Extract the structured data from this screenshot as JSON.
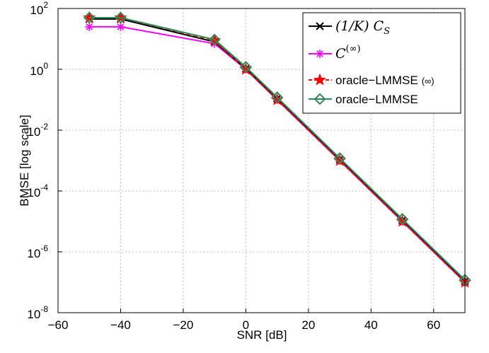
{
  "chart_data": {
    "type": "line",
    "xlabel": "SNR [dB]",
    "ylabel": "BMSE [log scale]",
    "yscale": "log",
    "xlim": [
      -60,
      70
    ],
    "ylim": [
      1e-08,
      100
    ],
    "x": [
      -50,
      -40,
      -10,
      0,
      10,
      30,
      50,
      70
    ],
    "x_ticks": [
      "−60",
      "−40",
      "−20",
      "0",
      "20",
      "40",
      "60"
    ],
    "y_ticks": [
      {
        "base": "10",
        "exp": "2"
      },
      {
        "base": "10",
        "exp": "0"
      },
      {
        "base": "10",
        "exp": "-2"
      },
      {
        "base": "10",
        "exp": "-4"
      },
      {
        "base": "10",
        "exp": "-6"
      },
      {
        "base": "10",
        "exp": "-8"
      }
    ],
    "grid": true,
    "legend_position": "top-right",
    "series": [
      {
        "name": "(1/K) C_S",
        "legend_main": "(1/K) C",
        "legend_sub": "S",
        "color": "#000000",
        "marker": "x",
        "dash": "solid",
        "values": [
          45,
          45,
          8,
          1.05,
          0.11,
          0.0011,
          1.1e-05,
          1.1e-07
        ]
      },
      {
        "name": "C^(∞)",
        "legend_main": "C",
        "legend_sup": "(∞)",
        "color": "#ff00ff",
        "marker": "asterisk",
        "dash": "solid",
        "values": [
          25,
          25,
          7,
          1.0,
          0.1,
          0.001,
          1e-05,
          1e-07
        ]
      },
      {
        "name": "oracle−LMMSE (∞)",
        "legend_text": "oracle−LMMSE",
        "legend_suffix": "(∞)",
        "color": "#ff0000",
        "marker": "star",
        "dash": "dashed",
        "values": [
          50,
          50,
          9,
          1.0,
          0.1,
          0.001,
          1e-05,
          1e-07
        ]
      },
      {
        "name": "oracle−LMMSE",
        "legend_text": "oracle−LMMSE",
        "color": "#2e8b57",
        "marker": "diamond",
        "dash": "solid",
        "values": [
          50,
          50,
          9.5,
          1.2,
          0.12,
          0.0012,
          1.2e-05,
          1.2e-07
        ]
      }
    ]
  }
}
